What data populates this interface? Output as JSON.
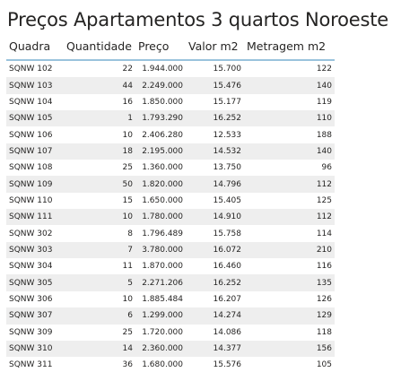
{
  "title": "Preços Apartamentos 3 quartos Noroeste",
  "table": {
    "headers": [
      "Quadra",
      "Quantidade",
      "Preço",
      "Valor m2",
      "Metragem m2"
    ],
    "rows": [
      [
        "SQNW 102",
        "22",
        "1.944.000",
        "15.700",
        "122"
      ],
      [
        "SQNW 103",
        "44",
        "2.249.000",
        "15.476",
        "140"
      ],
      [
        "SQNW 104",
        "16",
        "1.850.000",
        "15.177",
        "119"
      ],
      [
        "SQNW 105",
        "1",
        "1.793.290",
        "16.252",
        "110"
      ],
      [
        "SQNW 106",
        "10",
        "2.406.280",
        "12.533",
        "188"
      ],
      [
        "SQNW 107",
        "18",
        "2.195.000",
        "14.532",
        "140"
      ],
      [
        "SQNW 108",
        "25",
        "1.360.000",
        "13.750",
        "96"
      ],
      [
        "SQNW 109",
        "50",
        "1.820.000",
        "14.796",
        "112"
      ],
      [
        "SQNW 110",
        "15",
        "1.650.000",
        "15.405",
        "125"
      ],
      [
        "SQNW 111",
        "10",
        "1.780.000",
        "14.910",
        "112"
      ],
      [
        "SQNW 302",
        "8",
        "1.796.489",
        "15.758",
        "114"
      ],
      [
        "SQNW 303",
        "7",
        "3.780.000",
        "16.072",
        "210"
      ],
      [
        "SQNW 304",
        "11",
        "1.870.000",
        "16.460",
        "116"
      ],
      [
        "SQNW 305",
        "5",
        "2.271.206",
        "16.252",
        "135"
      ],
      [
        "SQNW 306",
        "10",
        "1.885.484",
        "16.207",
        "126"
      ],
      [
        "SQNW 307",
        "6",
        "1.299.000",
        "14.274",
        "129"
      ],
      [
        "SQNW 309",
        "25",
        "1.720.000",
        "14.086",
        "118"
      ],
      [
        "SQNW 310",
        "14",
        "2.360.000",
        "14.377",
        "156"
      ],
      [
        "SQNW 311",
        "36",
        "1.680.000",
        "15.576",
        "105"
      ]
    ]
  },
  "colors": {
    "header_rule": "#99c3dc",
    "band": "#eeeeee",
    "text": "#252423"
  }
}
